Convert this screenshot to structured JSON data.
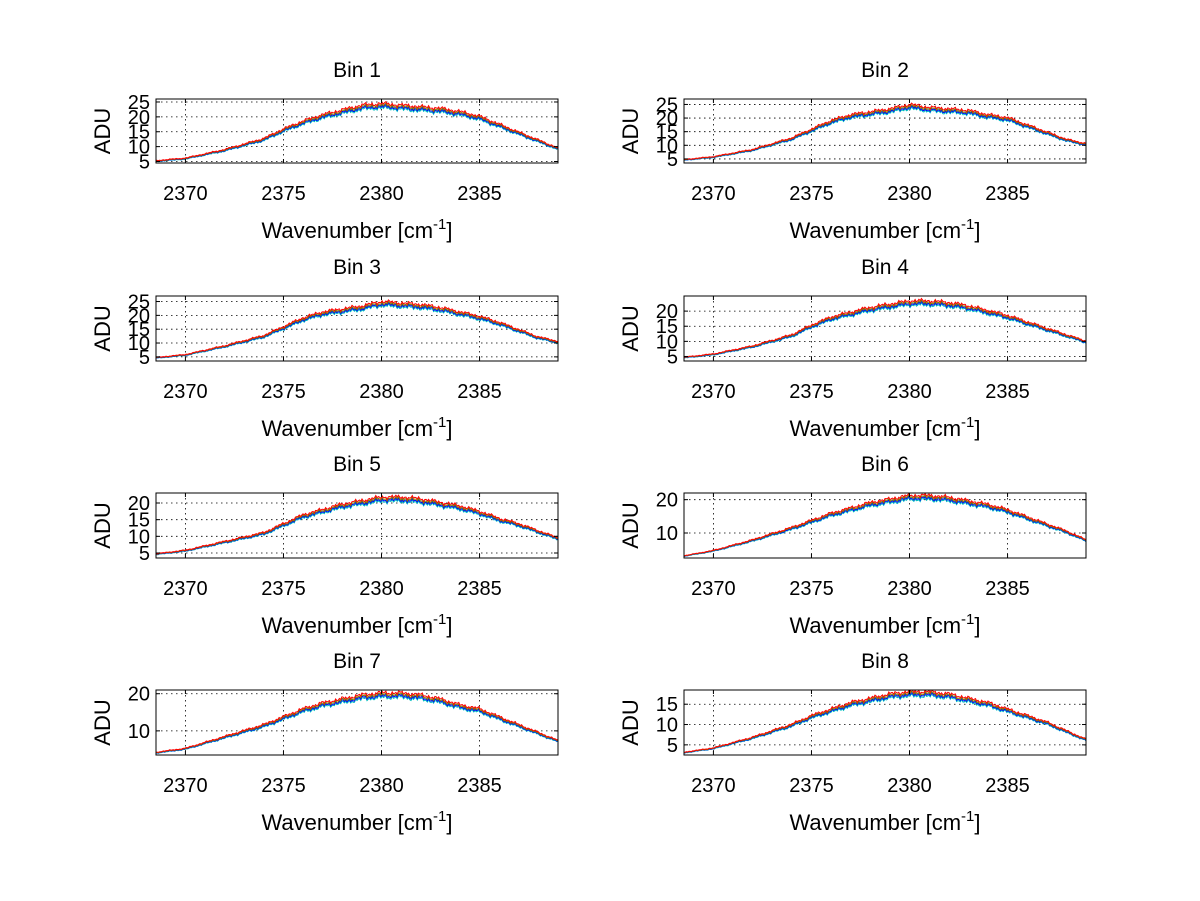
{
  "figure": {
    "background": "#ffffff"
  },
  "common": {
    "xlabel_main": "Wavenumber [cm",
    "xlabel_sup": "-1",
    "xlabel_close": "]",
    "ylabel": "ADU",
    "xlim": [
      2368.5,
      2389
    ],
    "xticks": [
      2370,
      2375,
      2380,
      2385
    ],
    "grid": true,
    "series_colors": [
      "#00bfbf",
      "#0000ff",
      "#7f7f00",
      "#ff0000"
    ]
  },
  "chart_data": [
    {
      "type": "line",
      "title": "Bin 1",
      "ylim": [
        4.5,
        26
      ],
      "yticks": [
        5,
        10,
        15,
        20,
        25
      ],
      "x": [
        2368.5,
        2370,
        2372,
        2374,
        2375,
        2376,
        2377,
        2378,
        2379,
        2380,
        2381,
        2382,
        2383,
        2384,
        2385,
        2386,
        2387,
        2388,
        2389
      ],
      "y": [
        5,
        5.8,
        8.5,
        12,
        15,
        17.5,
        19.5,
        21,
        22.5,
        23,
        22.5,
        22,
        21.5,
        20.5,
        19,
        16.5,
        14,
        11.5,
        9
      ]
    },
    {
      "type": "line",
      "title": "Bin 2",
      "ylim": [
        3.5,
        27
      ],
      "yticks": [
        5,
        10,
        15,
        20,
        25
      ],
      "x": [
        2368.5,
        2370,
        2372,
        2374,
        2375,
        2376,
        2377,
        2378,
        2379,
        2380,
        2381,
        2382,
        2383,
        2384,
        2385,
        2386,
        2387,
        2388,
        2389
      ],
      "y": [
        4.5,
        5.5,
        8,
        12,
        15,
        18,
        20,
        21,
        22,
        23.5,
        22.5,
        22,
        21.5,
        20,
        19,
        16.5,
        14,
        11.5,
        10
      ]
    },
    {
      "type": "line",
      "title": "Bin 3",
      "ylim": [
        3.5,
        27
      ],
      "yticks": [
        5,
        10,
        15,
        20,
        25
      ],
      "x": [
        2368.5,
        2370,
        2372,
        2374,
        2375,
        2376,
        2377,
        2378,
        2379,
        2380,
        2381,
        2382,
        2383,
        2384,
        2385,
        2386,
        2387,
        2388,
        2389
      ],
      "y": [
        4.5,
        5.5,
        8.5,
        12,
        15,
        18,
        20,
        21,
        22,
        23.5,
        23,
        22.5,
        21.5,
        20,
        18.5,
        16.5,
        14,
        11.5,
        10
      ]
    },
    {
      "type": "line",
      "title": "Bin 4",
      "ylim": [
        3.5,
        25
      ],
      "yticks": [
        5,
        10,
        15,
        20
      ],
      "x": [
        2368.5,
        2370,
        2372,
        2374,
        2375,
        2376,
        2377,
        2378,
        2379,
        2380,
        2381,
        2382,
        2383,
        2384,
        2385,
        2386,
        2387,
        2388,
        2389
      ],
      "y": [
        4.5,
        5.5,
        8,
        11.5,
        14.5,
        17,
        18.5,
        20,
        21,
        22,
        22,
        21.5,
        20.5,
        19,
        17.5,
        15.5,
        13.5,
        11.5,
        9.5
      ]
    },
    {
      "type": "line",
      "title": "Bin 5",
      "ylim": [
        3.5,
        23
      ],
      "yticks": [
        5,
        10,
        15,
        20
      ],
      "x": [
        2368.5,
        2370,
        2372,
        2374,
        2375,
        2376,
        2377,
        2378,
        2379,
        2380,
        2381,
        2382,
        2383,
        2384,
        2385,
        2386,
        2387,
        2388,
        2389
      ],
      "y": [
        4.5,
        5.5,
        8,
        10.5,
        13,
        15.5,
        17,
        18.5,
        19.5,
        20.5,
        20.5,
        20,
        19,
        18,
        16.5,
        14.5,
        13,
        11,
        9
      ]
    },
    {
      "type": "line",
      "title": "Bin 6",
      "ylim": [
        2.5,
        22
      ],
      "yticks": [
        10,
        20
      ],
      "x": [
        2368.5,
        2370,
        2372,
        2374,
        2375,
        2376,
        2377,
        2378,
        2379,
        2380,
        2381,
        2382,
        2383,
        2384,
        2385,
        2386,
        2387,
        2388,
        2389
      ],
      "y": [
        3,
        4.5,
        7.5,
        11,
        13,
        15,
        16.5,
        18,
        19,
        20,
        20,
        19.5,
        18.5,
        17.5,
        16,
        14,
        12,
        10,
        7.5
      ]
    },
    {
      "type": "line",
      "title": "Bin 7",
      "ylim": [
        3.5,
        21
      ],
      "yticks": [
        10,
        20
      ],
      "x": [
        2368.5,
        2370,
        2372,
        2374,
        2375,
        2376,
        2377,
        2378,
        2379,
        2380,
        2381,
        2382,
        2383,
        2384,
        2385,
        2386,
        2387,
        2388,
        2389
      ],
      "y": [
        4,
        5,
        8,
        11,
        13,
        15,
        16.5,
        17.5,
        18.5,
        19,
        19,
        18.5,
        17.5,
        16,
        15,
        13,
        11,
        9,
        7
      ]
    },
    {
      "type": "line",
      "title": "Bin 8",
      "ylim": [
        2.5,
        18.5
      ],
      "yticks": [
        5,
        10,
        15
      ],
      "x": [
        2368.5,
        2370,
        2372,
        2374,
        2375,
        2376,
        2377,
        2378,
        2379,
        2380,
        2381,
        2382,
        2383,
        2384,
        2385,
        2386,
        2387,
        2388,
        2389
      ],
      "y": [
        3,
        4,
        6.5,
        9.5,
        11.5,
        13,
        14.5,
        15.5,
        16.5,
        17,
        17,
        16.5,
        15.5,
        14.5,
        13,
        11.5,
        10,
        8,
        6
      ]
    }
  ]
}
